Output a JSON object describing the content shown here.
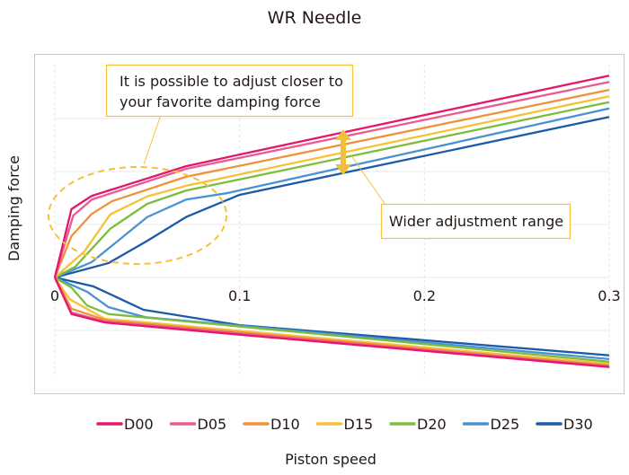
{
  "chart_data": {
    "type": "line",
    "title": "WR Needle",
    "xlabel": "Piston speed",
    "ylabel": "Damping force",
    "xlim": [
      0,
      0.3
    ],
    "ylim": [
      -2.18,
      4.22
    ],
    "x_ticks": [
      0,
      0.1,
      0.2,
      0.3
    ],
    "x_tick_labels": [
      "0",
      "0.1",
      "0.2",
      "0.3"
    ],
    "y_gridlines": [
      -1,
      0,
      1,
      2,
      3
    ],
    "grid": true,
    "legend_placement": "bottom",
    "series": [
      {
        "name": "D00",
        "color": "#e5176a",
        "rebound": [
          [
            0,
            0
          ],
          [
            0.009,
            1.29
          ],
          [
            0.02,
            1.54
          ],
          [
            0.071,
            2.1
          ],
          [
            0.1,
            2.32
          ],
          [
            0.3,
            3.81
          ]
        ],
        "compression": [
          [
            0,
            0
          ],
          [
            0.009,
            -0.69
          ],
          [
            0.027,
            -0.85
          ],
          [
            0.1,
            -1.08
          ],
          [
            0.3,
            -1.69
          ]
        ]
      },
      {
        "name": "D05",
        "color": "#ea5a93",
        "rebound": [
          [
            0,
            0
          ],
          [
            0.01,
            1.17
          ],
          [
            0.02,
            1.47
          ],
          [
            0.071,
            2.05
          ],
          [
            0.3,
            3.69
          ]
        ],
        "compression": [
          [
            0,
            0
          ],
          [
            0.009,
            -0.66
          ],
          [
            0.027,
            -0.83
          ],
          [
            0.3,
            -1.68
          ]
        ]
      },
      {
        "name": "D10",
        "color": "#f0913a",
        "rebound": [
          [
            0,
            0
          ],
          [
            0.009,
            0.78
          ],
          [
            0.02,
            1.2
          ],
          [
            0.031,
            1.44
          ],
          [
            0.071,
            1.9
          ],
          [
            0.3,
            3.54
          ]
        ],
        "compression": [
          [
            0,
            0
          ],
          [
            0.009,
            -0.59
          ],
          [
            0.028,
            -0.81
          ],
          [
            0.3,
            -1.66
          ]
        ]
      },
      {
        "name": "D15",
        "color": "#f6c136",
        "rebound": [
          [
            0,
            0
          ],
          [
            0.016,
            0.49
          ],
          [
            0.03,
            1.19
          ],
          [
            0.05,
            1.53
          ],
          [
            0.071,
            1.73
          ],
          [
            0.3,
            3.42
          ]
        ],
        "compression": [
          [
            0,
            0
          ],
          [
            0.008,
            -0.41
          ],
          [
            0.027,
            -0.78
          ],
          [
            0.3,
            -1.63
          ]
        ]
      },
      {
        "name": "D20",
        "color": "#7cbd3c",
        "rebound": [
          [
            0,
            0
          ],
          [
            0.011,
            0.2
          ],
          [
            0.03,
            0.92
          ],
          [
            0.05,
            1.39
          ],
          [
            0.071,
            1.64
          ],
          [
            0.3,
            3.31
          ]
        ],
        "compression": [
          [
            0,
            0
          ],
          [
            0.009,
            -0.19
          ],
          [
            0.0175,
            -0.53
          ],
          [
            0.029,
            -0.69
          ],
          [
            0.3,
            -1.59
          ]
        ]
      },
      {
        "name": "D25",
        "color": "#4a92d2",
        "rebound": [
          [
            0,
            0
          ],
          [
            0.02,
            0.29
          ],
          [
            0.05,
            1.14
          ],
          [
            0.071,
            1.47
          ],
          [
            0.093,
            1.59
          ],
          [
            0.3,
            3.19
          ]
        ],
        "compression": [
          [
            0,
            0
          ],
          [
            0.0175,
            -0.27
          ],
          [
            0.029,
            -0.56
          ],
          [
            0.049,
            -0.75
          ],
          [
            0.3,
            -1.54
          ]
        ]
      },
      {
        "name": "D30",
        "color": "#1c5aa8",
        "rebound": [
          [
            0,
            0
          ],
          [
            0.029,
            0.27
          ],
          [
            0.05,
            0.69
          ],
          [
            0.071,
            1.14
          ],
          [
            0.1,
            1.56
          ],
          [
            0.3,
            3.03
          ]
        ],
        "compression": [
          [
            0,
            0
          ],
          [
            0.021,
            -0.17
          ],
          [
            0.048,
            -0.61
          ],
          [
            0.1,
            -0.9
          ],
          [
            0.3,
            -1.47
          ]
        ]
      }
    ],
    "annotations": [
      {
        "text_lines": [
          "It is possible to adjust closer to",
          "your favorite damping force"
        ]
      },
      {
        "text": "Wider adjustment range"
      }
    ],
    "accent_color": "#f6c136"
  }
}
